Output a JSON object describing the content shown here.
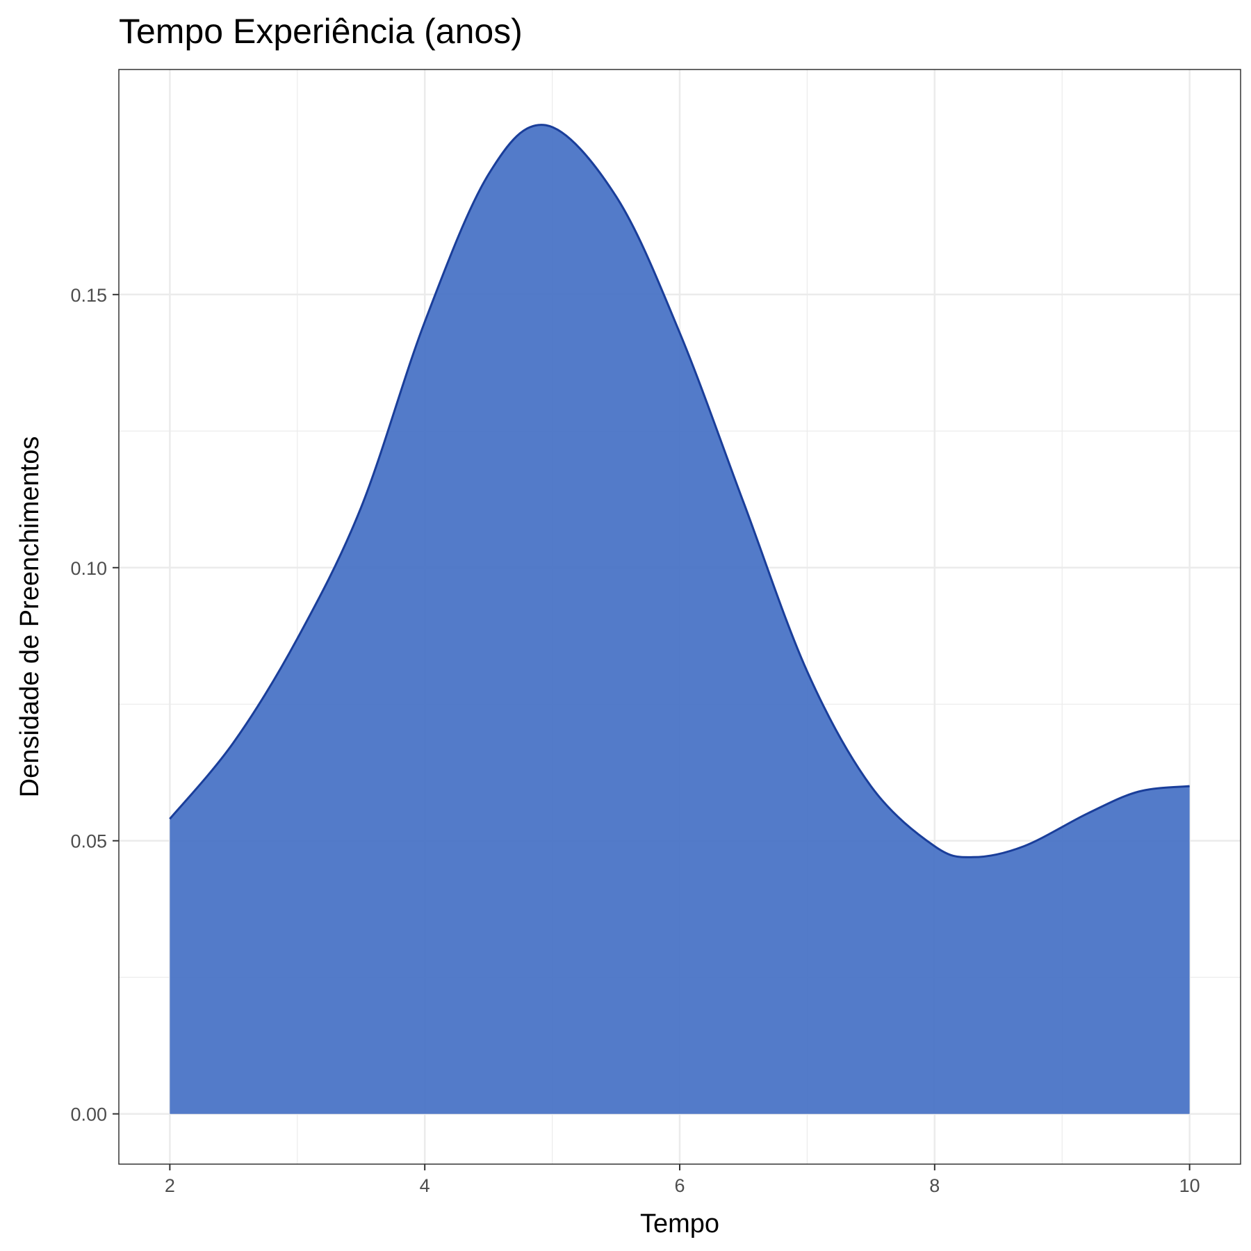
{
  "chart_data": {
    "type": "area",
    "title": "Tempo Experiência (anos)",
    "xlabel": "Tempo",
    "ylabel": "Densidade de Preenchimentos",
    "xlim": [
      1.6,
      10.4
    ],
    "ylim": [
      -0.0092,
      0.1912
    ],
    "x_ticks": [
      2,
      4,
      6,
      8,
      10
    ],
    "x_tick_labels": [
      "2",
      "4",
      "6",
      "8",
      "10"
    ],
    "y_ticks": [
      0.0,
      0.05,
      0.1,
      0.15
    ],
    "y_tick_labels": [
      "0.00",
      "0.05",
      "0.10",
      "0.15"
    ],
    "grid": true,
    "legend": "none",
    "colors": {
      "fill": "#4a74c6",
      "line": "#1a3e9a",
      "grid": "#ebebeb",
      "panel_border": "#333333"
    },
    "series": [
      {
        "x": [
          2.0,
          2.5,
          3.0,
          3.5,
          4.0,
          4.5,
          4.95,
          5.5,
          6.0,
          6.5,
          7.0,
          7.5,
          8.0,
          8.3,
          8.7,
          9.2,
          9.6,
          10.0
        ],
        "y": [
          0.054,
          0.068,
          0.087,
          0.111,
          0.145,
          0.172,
          0.181,
          0.168,
          0.143,
          0.112,
          0.081,
          0.06,
          0.049,
          0.047,
          0.049,
          0.055,
          0.059,
          0.06
        ]
      }
    ]
  }
}
